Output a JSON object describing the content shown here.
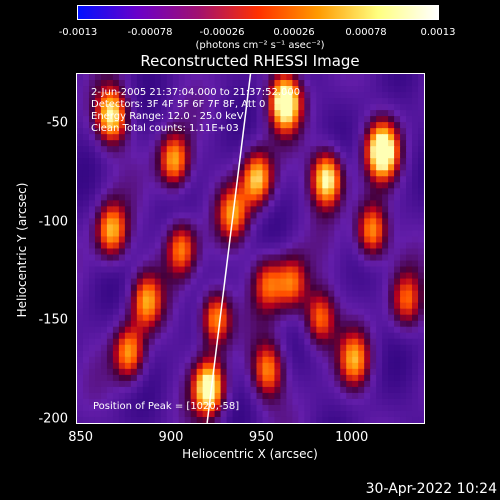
{
  "colorbar": {
    "ticks": [
      "-0.0013",
      "-0.00078",
      "-0.00026",
      "0.00026",
      "0.00078",
      "0.0013"
    ],
    "units": "(photons cm⁻² s⁻¹ asec⁻²)",
    "range": [
      -0.0013,
      0.0013
    ],
    "colors": [
      "#0010ff",
      "#6a00c8",
      "#a01070",
      "#ff3000",
      "#ff9a00",
      "#ffff80",
      "#ffffff"
    ]
  },
  "chart_data": {
    "type": "heatmap",
    "title": "Reconstructed RHESSI Image",
    "xlabel": "Heliocentric X (arcsec)",
    "ylabel": "Heliocentric Y (arcsec)",
    "xlim": [
      848,
      1040
    ],
    "ylim": [
      -202,
      -25
    ],
    "x_ticks": [
      "850",
      "900",
      "950",
      "1000"
    ],
    "y_ticks": [
      "-50",
      "-100",
      "-150",
      "-200"
    ],
    "annotations": {
      "time": "2-Jun-2005 21:37:04.000 to 21:37:52.000",
      "detectors": "Detectors: 3F 4F 5F 6F 7F 8F, Att 0",
      "energy": "Energy Range: 12.0 - 25.0 keV",
      "clean": "Clean     Total counts: 1.11E+03",
      "peak": "Position of Peak = [1020,-58]"
    },
    "peak": [
      1020,
      -58
    ],
    "limb_line": [
      [
        920,
        -202
      ],
      [
        944,
        -25
      ]
    ]
  },
  "footer": {
    "timestamp": "30-Apr-2022 10:24"
  }
}
